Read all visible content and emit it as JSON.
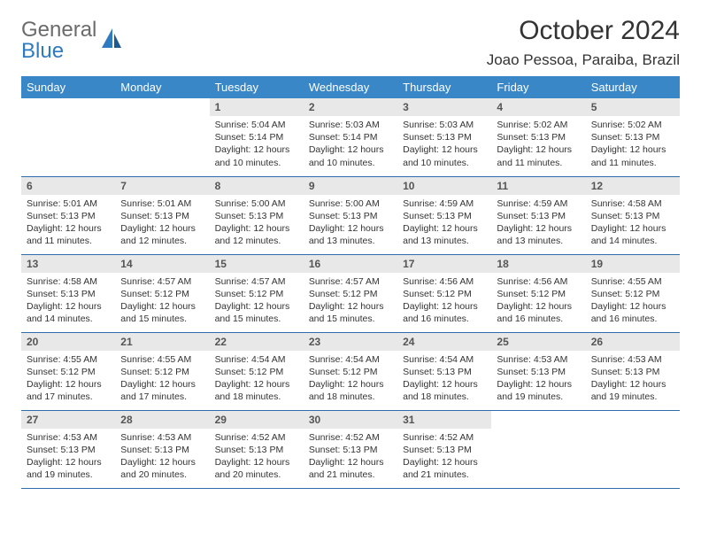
{
  "brand": {
    "text1": "General",
    "text2": "Blue"
  },
  "title": "October 2024",
  "location": "Joao Pessoa, Paraiba, Brazil",
  "colors": {
    "header_bg": "#3a87c8",
    "header_text": "#ffffff",
    "daynum_bg": "#e8e8e8",
    "border": "#2f6da8",
    "brand_gray": "#6b6b6b",
    "brand_blue": "#2f7bbf"
  },
  "dayHeaders": [
    "Sunday",
    "Monday",
    "Tuesday",
    "Wednesday",
    "Thursday",
    "Friday",
    "Saturday"
  ],
  "startOffset": 2,
  "days": [
    {
      "n": 1,
      "sunrise": "5:04 AM",
      "sunset": "5:14 PM",
      "daylight": "12 hours and 10 minutes."
    },
    {
      "n": 2,
      "sunrise": "5:03 AM",
      "sunset": "5:14 PM",
      "daylight": "12 hours and 10 minutes."
    },
    {
      "n": 3,
      "sunrise": "5:03 AM",
      "sunset": "5:13 PM",
      "daylight": "12 hours and 10 minutes."
    },
    {
      "n": 4,
      "sunrise": "5:02 AM",
      "sunset": "5:13 PM",
      "daylight": "12 hours and 11 minutes."
    },
    {
      "n": 5,
      "sunrise": "5:02 AM",
      "sunset": "5:13 PM",
      "daylight": "12 hours and 11 minutes."
    },
    {
      "n": 6,
      "sunrise": "5:01 AM",
      "sunset": "5:13 PM",
      "daylight": "12 hours and 11 minutes."
    },
    {
      "n": 7,
      "sunrise": "5:01 AM",
      "sunset": "5:13 PM",
      "daylight": "12 hours and 12 minutes."
    },
    {
      "n": 8,
      "sunrise": "5:00 AM",
      "sunset": "5:13 PM",
      "daylight": "12 hours and 12 minutes."
    },
    {
      "n": 9,
      "sunrise": "5:00 AM",
      "sunset": "5:13 PM",
      "daylight": "12 hours and 13 minutes."
    },
    {
      "n": 10,
      "sunrise": "4:59 AM",
      "sunset": "5:13 PM",
      "daylight": "12 hours and 13 minutes."
    },
    {
      "n": 11,
      "sunrise": "4:59 AM",
      "sunset": "5:13 PM",
      "daylight": "12 hours and 13 minutes."
    },
    {
      "n": 12,
      "sunrise": "4:58 AM",
      "sunset": "5:13 PM",
      "daylight": "12 hours and 14 minutes."
    },
    {
      "n": 13,
      "sunrise": "4:58 AM",
      "sunset": "5:13 PM",
      "daylight": "12 hours and 14 minutes."
    },
    {
      "n": 14,
      "sunrise": "4:57 AM",
      "sunset": "5:12 PM",
      "daylight": "12 hours and 15 minutes."
    },
    {
      "n": 15,
      "sunrise": "4:57 AM",
      "sunset": "5:12 PM",
      "daylight": "12 hours and 15 minutes."
    },
    {
      "n": 16,
      "sunrise": "4:57 AM",
      "sunset": "5:12 PM",
      "daylight": "12 hours and 15 minutes."
    },
    {
      "n": 17,
      "sunrise": "4:56 AM",
      "sunset": "5:12 PM",
      "daylight": "12 hours and 16 minutes."
    },
    {
      "n": 18,
      "sunrise": "4:56 AM",
      "sunset": "5:12 PM",
      "daylight": "12 hours and 16 minutes."
    },
    {
      "n": 19,
      "sunrise": "4:55 AM",
      "sunset": "5:12 PM",
      "daylight": "12 hours and 16 minutes."
    },
    {
      "n": 20,
      "sunrise": "4:55 AM",
      "sunset": "5:12 PM",
      "daylight": "12 hours and 17 minutes."
    },
    {
      "n": 21,
      "sunrise": "4:55 AM",
      "sunset": "5:12 PM",
      "daylight": "12 hours and 17 minutes."
    },
    {
      "n": 22,
      "sunrise": "4:54 AM",
      "sunset": "5:12 PM",
      "daylight": "12 hours and 18 minutes."
    },
    {
      "n": 23,
      "sunrise": "4:54 AM",
      "sunset": "5:12 PM",
      "daylight": "12 hours and 18 minutes."
    },
    {
      "n": 24,
      "sunrise": "4:54 AM",
      "sunset": "5:13 PM",
      "daylight": "12 hours and 18 minutes."
    },
    {
      "n": 25,
      "sunrise": "4:53 AM",
      "sunset": "5:13 PM",
      "daylight": "12 hours and 19 minutes."
    },
    {
      "n": 26,
      "sunrise": "4:53 AM",
      "sunset": "5:13 PM",
      "daylight": "12 hours and 19 minutes."
    },
    {
      "n": 27,
      "sunrise": "4:53 AM",
      "sunset": "5:13 PM",
      "daylight": "12 hours and 19 minutes."
    },
    {
      "n": 28,
      "sunrise": "4:53 AM",
      "sunset": "5:13 PM",
      "daylight": "12 hours and 20 minutes."
    },
    {
      "n": 29,
      "sunrise": "4:52 AM",
      "sunset": "5:13 PM",
      "daylight": "12 hours and 20 minutes."
    },
    {
      "n": 30,
      "sunrise": "4:52 AM",
      "sunset": "5:13 PM",
      "daylight": "12 hours and 21 minutes."
    },
    {
      "n": 31,
      "sunrise": "4:52 AM",
      "sunset": "5:13 PM",
      "daylight": "12 hours and 21 minutes."
    }
  ],
  "labels": {
    "sunrise": "Sunrise:",
    "sunset": "Sunset:",
    "daylight": "Daylight:"
  }
}
